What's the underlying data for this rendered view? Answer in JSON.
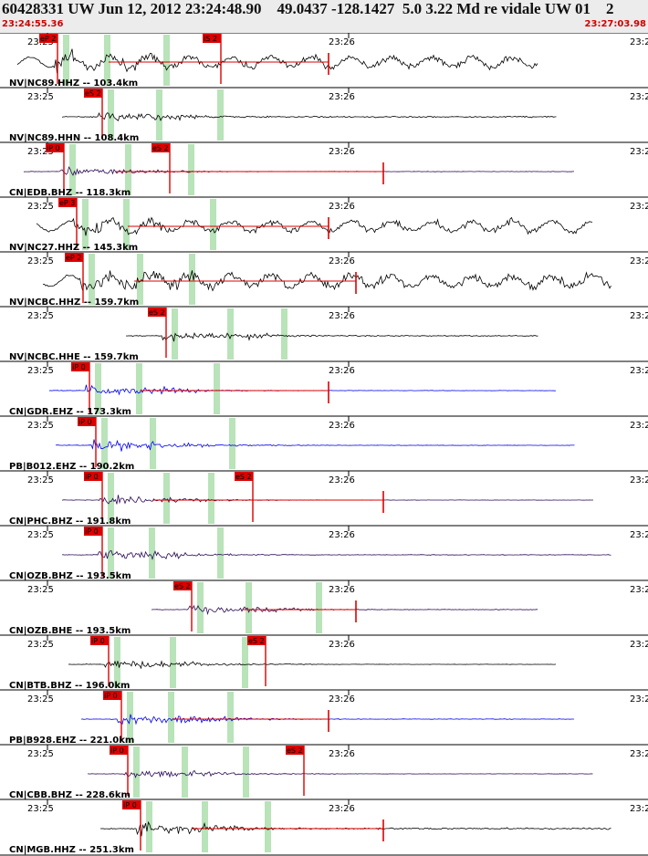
{
  "header": {
    "title": "60428331 UW Jun 12, 2012 23:24:48.90    49.0437 -128.1427  5.0 3.22 Md re vidale UW 01    2",
    "start_time": "23:24:55.36",
    "end_time": "23:27:03.98"
  },
  "time_ticks": {
    "t1": "23:25",
    "t2": "23:26",
    "t3": "23:2"
  },
  "colors": {
    "pick": "#dd0000",
    "window": "#b9e3b9",
    "black": "#000000",
    "blue": "#0000ee",
    "purple": "#2a0a55"
  },
  "traces": [
    {
      "label": "NV|NC89.HHZ -- 103.4km",
      "color": "black",
      "picks": [
        {
          "text": "eP 2",
          "t": 0.03
        },
        {
          "text": "iS 2",
          "t": 0.2
        }
      ],
      "amp": 0.55,
      "tail": 0.6
    },
    {
      "label": "NV|NC89.HHN -- 108.4km",
      "color": "black",
      "picks": [
        {
          "text": "eS 2",
          "t": 0.1
        }
      ],
      "amp": 0.38,
      "tail": 0.2
    },
    {
      "label": "CN|EDB.BHZ -- 118.3km",
      "color": "purple",
      "picks": [
        {
          "text": "iP 0",
          "t": 0.04
        },
        {
          "text": "eS 2",
          "t": 0.12
        }
      ],
      "amp": 0.3,
      "tail": 0.08
    },
    {
      "label": "NV|NC27.HHZ -- 145.3km",
      "color": "black",
      "picks": [
        {
          "text": "eP 3",
          "t": 0.06
        }
      ],
      "amp": 0.55,
      "tail": 0.6
    },
    {
      "label": "NV|NCBC.HHZ -- 159.7km",
      "color": "black",
      "picks": [
        {
          "text": "eP 2",
          "t": 0.07
        }
      ],
      "amp": 0.6,
      "tail": 0.75
    },
    {
      "label": "NV|NCBC.HHE -- 159.7km",
      "color": "black",
      "picks": [
        {
          "text": "eS 2",
          "t": 0.2
        }
      ],
      "amp": 0.4,
      "tail": 0.15
    },
    {
      "label": "CN|GDR.EHZ -- 173.3km",
      "color": "blue",
      "picks": [
        {
          "text": "iP 0",
          "t": 0.08
        }
      ],
      "amp": 0.4,
      "tail": 0.05
    },
    {
      "label": "PB|B012.EHZ -- 190.2km",
      "color": "blue",
      "picks": [
        {
          "text": "iP 0",
          "t": 0.09
        }
      ],
      "amp": 0.45,
      "tail": 0.05
    },
    {
      "label": "CN|PHC.BHZ -- 191.8km",
      "color": "purple",
      "picks": [
        {
          "text": "iP 0",
          "t": 0.1
        },
        {
          "text": "eS 2",
          "t": 0.25
        }
      ],
      "amp": 0.3,
      "tail": 0.05
    },
    {
      "label": "CN|OZB.BHZ -- 193.5km",
      "color": "purple",
      "picks": [
        {
          "text": "iP 0",
          "t": 0.1
        }
      ],
      "amp": 0.35,
      "tail": 0.1
    },
    {
      "label": "CN|OZB.BHE -- 193.5km",
      "color": "purple",
      "picks": [
        {
          "text": "eS 2",
          "t": 0.24
        }
      ],
      "amp": 0.3,
      "tail": 0.12
    },
    {
      "label": "CN|BTB.BHZ -- 196.0km",
      "color": "black",
      "picks": [
        {
          "text": "iP 0",
          "t": 0.11
        },
        {
          "text": "eS 2",
          "t": 0.27
        }
      ],
      "amp": 0.35,
      "tail": 0.05
    },
    {
      "label": "PB|B928.EHZ -- 221.0km",
      "color": "blue",
      "picks": [
        {
          "text": "iP 0",
          "t": 0.13
        }
      ],
      "amp": 0.45,
      "tail": 0.06
    },
    {
      "label": "CN|CBB.BHZ -- 228.6km",
      "color": "purple",
      "picks": [
        {
          "text": "iP 0",
          "t": 0.14
        },
        {
          "text": "eS 2",
          "t": 0.33
        }
      ],
      "amp": 0.3,
      "tail": 0.06
    },
    {
      "label": "CN|MGB.HHZ -- 251.3km",
      "color": "black",
      "picks": [
        {
          "text": "iP 0",
          "t": 0.16
        }
      ],
      "amp": 0.45,
      "tail": 0.2
    }
  ]
}
